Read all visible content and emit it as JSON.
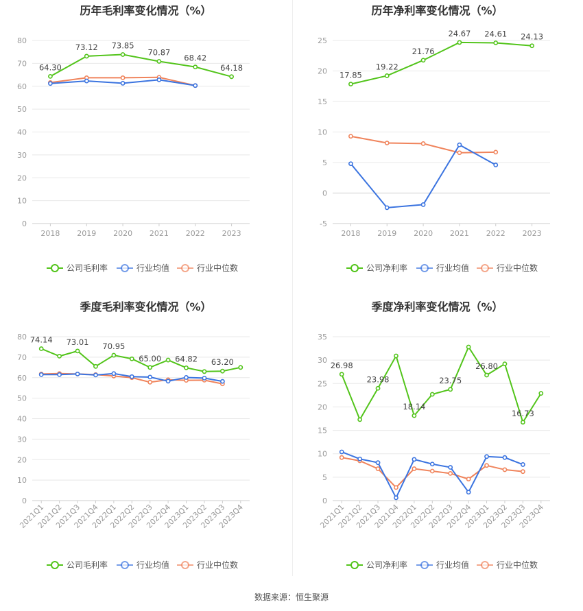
{
  "source_text": "数据来源：恒生聚源",
  "chart_data": [
    {
      "type": "line",
      "title": "历年毛利率变化情况（%）",
      "categories": [
        "2018",
        "2019",
        "2020",
        "2021",
        "2022",
        "2023"
      ],
      "yticks": [
        "0",
        "10",
        "20",
        "30",
        "40",
        "50",
        "60",
        "70",
        "80"
      ],
      "ylim": [
        0,
        80
      ],
      "series": [
        {
          "name": "公司毛利率",
          "color": "#52c41a",
          "values": [
            64.3,
            73.12,
            73.85,
            70.87,
            68.42,
            64.18
          ],
          "labels": [
            "64.30",
            "73.12",
            "73.85",
            "70.87",
            "68.42",
            "64.18"
          ]
        },
        {
          "name": "行业均值",
          "color": "#3b74e0",
          "values": [
            61.2,
            62.3,
            61.3,
            62.8,
            60.3,
            null
          ],
          "labels": []
        },
        {
          "name": "行业中位数",
          "color": "#f0845c",
          "values": [
            61.6,
            63.7,
            63.7,
            63.9,
            60.3,
            null
          ],
          "labels": []
        }
      ],
      "legend": [
        "公司毛利率",
        "行业均值",
        "行业中位数"
      ]
    },
    {
      "type": "line",
      "title": "历年净利率变化情况（%）",
      "categories": [
        "2018",
        "2019",
        "2020",
        "2021",
        "2022",
        "2023"
      ],
      "yticks": [
        "-5",
        "0",
        "5",
        "10",
        "15",
        "20",
        "25"
      ],
      "ylim": [
        -5,
        25
      ],
      "series": [
        {
          "name": "公司净利率",
          "color": "#52c41a",
          "values": [
            17.85,
            19.22,
            21.76,
            24.67,
            24.61,
            24.13
          ],
          "labels": [
            "17.85",
            "19.22",
            "21.76",
            "24.67",
            "24.61",
            "24.13"
          ]
        },
        {
          "name": "行业均值",
          "color": "#3b74e0",
          "values": [
            4.8,
            -2.4,
            -1.9,
            7.9,
            4.6,
            null
          ],
          "labels": []
        },
        {
          "name": "行业中位数",
          "color": "#f0845c",
          "values": [
            9.3,
            8.2,
            8.1,
            6.6,
            6.7,
            null
          ],
          "labels": []
        }
      ],
      "legend": [
        "公司净利率",
        "行业均值",
        "行业中位数"
      ]
    },
    {
      "type": "line",
      "title": "季度毛利率变化情况（%）",
      "categories": [
        "2021Q1",
        "2021Q2",
        "2021Q3",
        "2021Q4",
        "2022Q1",
        "2022Q2",
        "2022Q3",
        "2022Q4",
        "2023Q1",
        "2023Q2",
        "2023Q3",
        "2023Q4"
      ],
      "yticks": [
        "0",
        "10",
        "20",
        "30",
        "40",
        "50",
        "60",
        "70",
        "80"
      ],
      "ylim": [
        0,
        80
      ],
      "series": [
        {
          "name": "公司毛利率",
          "color": "#52c41a",
          "values": [
            74.14,
            70.5,
            73.01,
            65.5,
            70.95,
            69.2,
            65.0,
            68.6,
            64.82,
            63.0,
            63.2,
            65.0
          ],
          "labels": [
            "74.14",
            "",
            "73.01",
            "",
            "70.95",
            "",
            "65.00",
            "",
            "64.82",
            "",
            "63.20",
            ""
          ]
        },
        {
          "name": "行业均值",
          "color": "#3b74e0",
          "values": [
            61.5,
            61.5,
            61.8,
            61.3,
            62.0,
            60.5,
            60.3,
            58.3,
            60.1,
            59.8,
            58.2,
            null
          ],
          "labels": []
        },
        {
          "name": "行业中位数",
          "color": "#f0845c",
          "values": [
            61.8,
            62.0,
            61.8,
            61.5,
            60.8,
            60.0,
            57.8,
            59.0,
            58.7,
            58.8,
            57.0,
            null
          ],
          "labels": []
        }
      ],
      "legend": [
        "公司毛利率",
        "行业均值",
        "行业中位数"
      ]
    },
    {
      "type": "line",
      "title": "季度净利率变化情况（%）",
      "categories": [
        "2021Q1",
        "2021Q2",
        "2021Q3",
        "2021Q4",
        "2022Q1",
        "2022Q2",
        "2022Q3",
        "2022Q4",
        "2023Q1",
        "2023Q2",
        "2023Q3",
        "2023Q4"
      ],
      "yticks": [
        "0",
        "5",
        "10",
        "15",
        "20",
        "25",
        "30",
        "35"
      ],
      "ylim": [
        0,
        35
      ],
      "series": [
        {
          "name": "公司净利率",
          "color": "#52c41a",
          "values": [
            26.98,
            17.3,
            23.98,
            30.9,
            18.14,
            22.7,
            23.75,
            32.8,
            26.8,
            29.2,
            16.73,
            22.9
          ],
          "labels": [
            "26.98",
            "",
            "23.98",
            "",
            "18.14",
            "",
            "23.75",
            "",
            "26.80",
            "",
            "16.73",
            ""
          ]
        },
        {
          "name": "行业均值",
          "color": "#3b74e0",
          "values": [
            10.4,
            8.9,
            8.1,
            0.6,
            8.8,
            7.8,
            7.1,
            1.8,
            9.4,
            9.2,
            7.7,
            null
          ],
          "labels": []
        },
        {
          "name": "行业中位数",
          "color": "#f0845c",
          "values": [
            9.2,
            8.5,
            6.8,
            2.8,
            6.8,
            6.3,
            5.8,
            4.6,
            7.5,
            6.6,
            6.2,
            null
          ],
          "labels": []
        }
      ],
      "legend": [
        "公司净利率",
        "行业均值",
        "行业中位数"
      ]
    }
  ]
}
